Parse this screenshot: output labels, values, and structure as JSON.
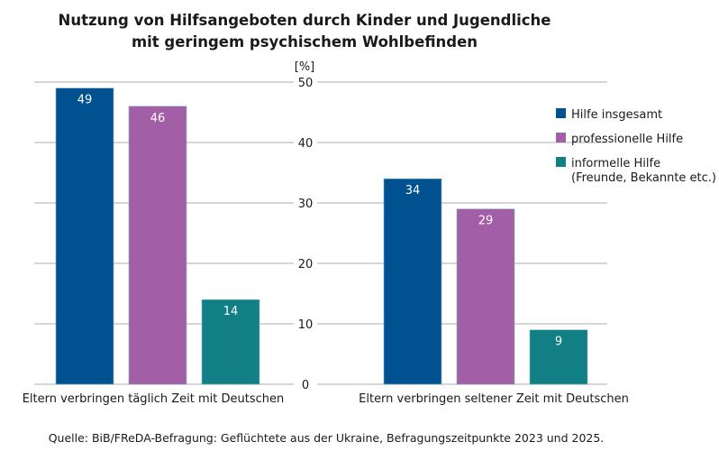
{
  "chart_data": {
    "type": "bar",
    "title": [
      "Nutzung von Hilfsangeboten durch Kinder und Jugendliche",
      "mit geringem psychischem Wohlbefinden"
    ],
    "unit_label": "[%]",
    "categories": [
      "Eltern verbringen täglich Zeit mit Deutschen",
      "Eltern verbringen seltener Zeit mit Deutschen"
    ],
    "series": [
      {
        "name": "Hilfe insgesamt",
        "color": "#005190",
        "values": [
          49,
          34
        ]
      },
      {
        "name": "professionelle Hilfe",
        "color": "#a25fa5",
        "values": [
          46,
          29
        ]
      },
      {
        "name": "informelle Hilfe (Freunde, Bekannte etc.)",
        "legend_lines": [
          "informelle Hilfe",
          "(Freunde, Bekannte etc.)"
        ],
        "color": "#117f84",
        "values": [
          14,
          9
        ]
      }
    ],
    "ylim": [
      0,
      50
    ],
    "yticks": [
      0,
      10,
      20,
      30,
      40,
      50
    ],
    "grid": true,
    "legend_position": "right",
    "source": "Quelle: BiB/FReDA-Befragung: Geflüchtete aus der Ukraine, Befragungszeitpunkte 2023 und 2025."
  }
}
